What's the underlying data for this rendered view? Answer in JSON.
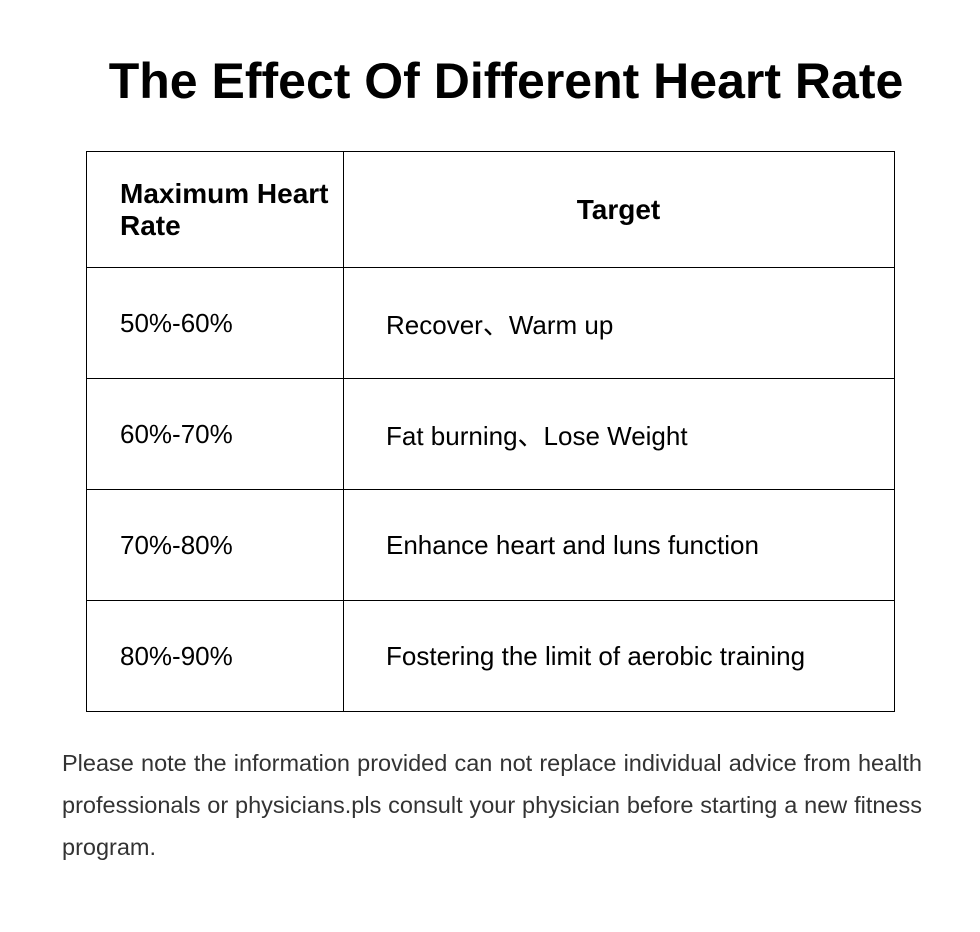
{
  "title": "The Effect Of Different Heart Rate",
  "table": {
    "headers": [
      "Maximum Heart Rate",
      "Target"
    ],
    "rows": [
      [
        "50%-60%",
        "Recover、Warm up"
      ],
      [
        "60%-70%",
        "Fat burning、Lose Weight"
      ],
      [
        "70%-80%",
        "Enhance heart and luns function"
      ],
      [
        "80%-90%",
        "Fostering the limit of aerobic training"
      ]
    ]
  },
  "note": "Please note the information provided can not replace individual advice from health professionals or physicians.pls consult your physician before starting a new fitness program."
}
